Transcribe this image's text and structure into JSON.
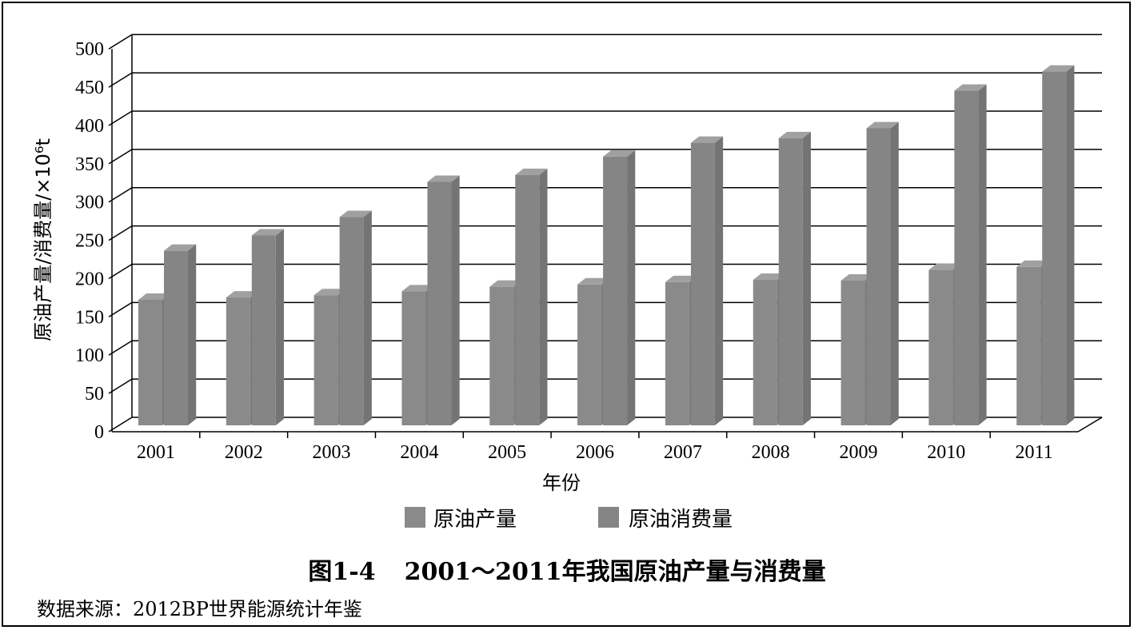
{
  "chart_data": {
    "type": "bar",
    "style": "3d-clustered-column",
    "categories": [
      "2001",
      "2002",
      "2003",
      "2004",
      "2005",
      "2006",
      "2007",
      "2008",
      "2009",
      "2010",
      "2011"
    ],
    "series": [
      {
        "name": "原油产量",
        "values": [
          164,
          167,
          170,
          175,
          181,
          184,
          187,
          190,
          189,
          203,
          207
        ],
        "color": "#8a8a8a"
      },
      {
        "name": "原油消费量",
        "values": [
          228,
          248,
          272,
          318,
          327,
          351,
          369,
          375,
          388,
          437,
          462
        ],
        "color": "#858585"
      }
    ],
    "xlabel": "年份",
    "ylabel": "原油产量/消费量/×10⁶t",
    "ylim": [
      0,
      500
    ],
    "yticks": [
      "0",
      "50",
      "100",
      "150",
      "200",
      "250",
      "300",
      "350",
      "400",
      "450",
      "500"
    ],
    "grid": true,
    "legend_position": "bottom"
  },
  "caption": {
    "figure_no": "图1-4",
    "title": "2001～2011年我国原油产量与消费量"
  },
  "source": "数据来源：2012BP世界能源统计年鉴"
}
